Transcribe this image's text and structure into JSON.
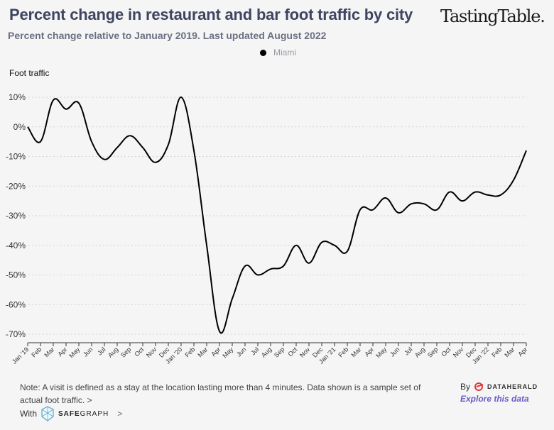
{
  "header": {
    "title": "Percent change in restaurant and bar foot traffic by city",
    "subtitle": "Percent change relative to January 2019. Last updated August 2022",
    "brand": "TastingTable."
  },
  "legend": {
    "label": "Miami",
    "color": "#000000"
  },
  "footer": {
    "note": "Note: A visit is defined as a stay at the location lasting more than 4 minutes. Data shown is a sample set of actual foot traffic.",
    "note_chevron": ">",
    "with_label": "With",
    "safegraph_bold": "SAFE",
    "safegraph_rest": "GRAPH",
    "safegraph_chevron": ">",
    "by_label": "By",
    "dataherald": "DATAHERALD",
    "explore": "Explore this data"
  },
  "chart_data": {
    "type": "line",
    "title": "Percent change in restaurant and bar foot traffic by city",
    "subtitle": "Percent change relative to January 2019. Last updated August 2022",
    "ylabel": "Foot traffic",
    "xlabel": "",
    "ylim": [
      -70,
      10
    ],
    "yticks": [
      10,
      0,
      -10,
      -20,
      -30,
      -40,
      -50,
      -60,
      -70
    ],
    "ytick_labels": [
      "10%",
      "0%",
      "-10%",
      "-20%",
      "-30%",
      "-40%",
      "-50%",
      "-60%",
      "-70%"
    ],
    "grid": true,
    "legend_position": "top-center",
    "x": [
      "Jan '19",
      "Feb",
      "Mar",
      "Apr",
      "May",
      "Jun",
      "Jul",
      "Aug",
      "Sep",
      "Oct",
      "Nov",
      "Dec",
      "Jan '20",
      "Feb",
      "Mar",
      "Apr",
      "May",
      "Jun",
      "Jul",
      "Aug",
      "Sep",
      "Oct",
      "Nov",
      "Dec",
      "Jan '21",
      "Feb",
      "Mar",
      "Apr",
      "May",
      "Jun",
      "Jul",
      "Aug",
      "Sep",
      "Oct",
      "Nov",
      "Dec",
      "Jan '22",
      "Feb",
      "Mar",
      "Apr"
    ],
    "series": [
      {
        "name": "Miami",
        "color": "#000000",
        "values": [
          0,
          -5,
          9,
          6,
          8,
          -5,
          -11,
          -7,
          -3,
          -7,
          -12,
          -6,
          10,
          -8,
          -40,
          -69,
          -58,
          -47,
          -50,
          -48,
          -47,
          -40,
          -46,
          -39,
          -40,
          -42,
          -28,
          -28,
          -24,
          -29,
          -26,
          -26,
          -28,
          -22,
          -25,
          -22,
          -23,
          -23,
          -18,
          -8
        ]
      }
    ]
  }
}
